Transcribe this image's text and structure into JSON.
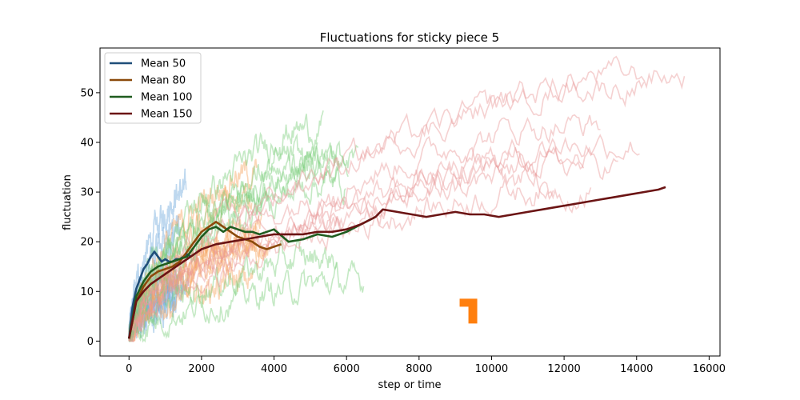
{
  "chart_data": {
    "type": "line",
    "title": "Fluctuations for sticky piece 5",
    "xlabel": "step or time",
    "ylabel": "fluctuation",
    "xlim": [
      -800,
      16300
    ],
    "ylim": [
      -3,
      59
    ],
    "xticks": [
      0,
      2000,
      4000,
      6000,
      8000,
      10000,
      12000,
      14000,
      16000
    ],
    "yticks": [
      0,
      10,
      20,
      30,
      40,
      50
    ],
    "grid": false,
    "legend_position": "top-left",
    "series": [
      {
        "name": "Mean 50",
        "color": "#1f4e79",
        "x": [
          0,
          100,
          200,
          300,
          400,
          500,
          600,
          700,
          800,
          900,
          1000,
          1100,
          1200,
          1300,
          1400,
          1500,
          1600,
          1700
        ],
        "y": [
          0.5,
          7,
          10.5,
          12.5,
          14.5,
          15.5,
          17,
          18,
          17,
          16,
          16.5,
          16,
          16,
          16.5,
          16.5,
          17,
          17.5,
          17
        ]
      },
      {
        "name": "Mean 80",
        "color": "#8b4a0b",
        "x": [
          0,
          200,
          400,
          600,
          800,
          1000,
          1200,
          1400,
          1600,
          1800,
          2000,
          2200,
          2400,
          2600,
          2800,
          3000,
          3200,
          3400,
          3600,
          3800,
          4000,
          4200
        ],
        "y": [
          0.5,
          8,
          11,
          13,
          14,
          14.5,
          15,
          16,
          18,
          20,
          22,
          23,
          24,
          23,
          22,
          21,
          20.5,
          20,
          19,
          18.5,
          19,
          19.5
        ]
      },
      {
        "name": "Mean 100",
        "color": "#1f5c1f",
        "x": [
          0,
          200,
          400,
          600,
          800,
          1000,
          1200,
          1400,
          1600,
          1800,
          2000,
          2200,
          2400,
          2600,
          2800,
          3000,
          3200,
          3400,
          3600,
          3800,
          4000,
          4400,
          4800,
          5200,
          5600,
          6000,
          6400,
          6800
        ],
        "y": [
          0.5,
          9,
          12,
          14,
          15,
          15.5,
          16,
          16.5,
          17,
          19,
          21,
          22.5,
          23,
          22,
          23,
          22.5,
          22,
          22,
          21.5,
          22,
          22.5,
          20,
          20.5,
          21.5,
          21,
          22,
          23.5,
          25
        ]
      },
      {
        "name": "Mean 150",
        "color": "#6b1414",
        "x": [
          0,
          200,
          400,
          600,
          800,
          1000,
          1200,
          1400,
          1600,
          1800,
          2000,
          2400,
          2800,
          3200,
          3600,
          4000,
          4400,
          4800,
          5200,
          5600,
          6000,
          6400,
          6800,
          7000,
          7400,
          7800,
          8200,
          8600,
          9000,
          9400,
          9800,
          10200,
          10600,
          11000,
          11400,
          11800,
          12200,
          12600,
          13000,
          13400,
          13800,
          14200,
          14600,
          14800
        ],
        "y": [
          0.5,
          8,
          10,
          11.5,
          12.5,
          13.5,
          14.5,
          15.5,
          16.5,
          17.5,
          18.5,
          19.5,
          20,
          20.5,
          21,
          21.5,
          21.5,
          21.5,
          22,
          22,
          22.5,
          23.5,
          25,
          26.5,
          26,
          25.5,
          25,
          25.5,
          26,
          25.5,
          25.5,
          25,
          25.5,
          26,
          26.5,
          27,
          27.5,
          28,
          28.5,
          29,
          29.5,
          30,
          30.5,
          31
        ]
      }
    ],
    "background_traces": [
      {
        "group": "Mean 50",
        "color": "#6fa8dc",
        "count": 8,
        "x_max": 1700,
        "y_range": [
          7,
          31
        ]
      },
      {
        "group": "Mean 80",
        "color": "#f6a560",
        "count": 8,
        "x_max": 4200,
        "y_range": [
          9,
          36
        ]
      },
      {
        "group": "Mean 100",
        "color": "#7ccf7c",
        "count": 8,
        "x_max": 6800,
        "y_range": [
          8,
          44
        ]
      },
      {
        "group": "Mean 150",
        "color": "#e8989a",
        "count": 8,
        "x_max": 15500,
        "y_range": [
          10,
          56
        ]
      }
    ],
    "markers": [
      {
        "shape": "square-corner",
        "color": "#ff7f0e",
        "x": 9450,
        "y": 5
      }
    ]
  }
}
